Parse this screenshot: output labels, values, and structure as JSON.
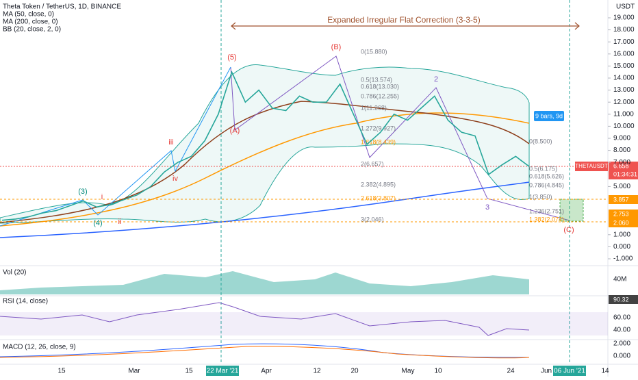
{
  "header": {
    "symbol": "Theta Token / TetherUS, 1D, BINANCE",
    "indicators": [
      "MA (50, close, 0)",
      "MA (200, close, 0)",
      "BB (20, close, 2, 0)"
    ]
  },
  "currency": "USDT",
  "annotation": "Expanded Irregular Flat Correction (3-3-5)",
  "bars_badge": "9 bars, 9d",
  "price_ticks": [
    {
      "value": 19,
      "label": "19.000"
    },
    {
      "value": 18,
      "label": "18.000"
    },
    {
      "value": 17,
      "label": "17.000"
    },
    {
      "value": 16,
      "label": "16.000"
    },
    {
      "value": 15,
      "label": "15.000"
    },
    {
      "value": 14,
      "label": "14.000"
    },
    {
      "value": 13,
      "label": "13.000"
    },
    {
      "value": 12,
      "label": "12.000"
    },
    {
      "value": 11,
      "label": "11.000"
    },
    {
      "value": 10,
      "label": "10.000"
    },
    {
      "value": 9,
      "label": "9.000"
    },
    {
      "value": 8,
      "label": "8.000"
    },
    {
      "value": 7,
      "label": "7.000"
    },
    {
      "value": 5,
      "label": "5.000"
    },
    {
      "value": 1,
      "label": "1.000"
    },
    {
      "value": 0,
      "label": "0.000"
    },
    {
      "value": -1,
      "label": "-1.000"
    }
  ],
  "price_series": [
    2.2,
    2.3,
    2.5,
    2.8,
    3.0,
    3.4,
    3.8,
    3.3,
    3.5,
    3.9,
    4.3,
    5.0,
    6.2,
    7.0,
    7.5,
    8.8,
    11.0,
    14.5,
    12.0,
    13.0,
    11.5,
    11.3,
    12.5,
    12.0,
    12.0,
    13.5,
    11.0,
    8.5,
    9.5,
    11.0,
    10.5,
    11.5,
    12.5,
    10.5,
    9.5,
    9.2,
    6.0,
    6.8,
    7.5,
    6.658
  ],
  "price_badges": {
    "symbol": "THETAUSDT",
    "last": "6.658",
    "countdown": "01:34:31",
    "level1": "3.857",
    "level2": "2.753",
    "level3": "2.060"
  },
  "fib_left": [
    "0(15.880)",
    "0.5(13.574)",
    "0.618(13.030)",
    "0.786(12.255)",
    "1(11.268)",
    "1.272(9.927)",
    "1.618(8.439)",
    "2(6.657)",
    "2.382(4.895)",
    "2.618(3.807)",
    "3(2.046)"
  ],
  "fib_right": [
    "0(8.500)",
    "0.5(6.175)",
    "0.618(5.626)",
    "0.786(4.845)",
    "1(3.850)",
    "1.236(2.751)",
    "1.382(2.074)"
  ],
  "waves": [
    "(5)",
    "(A)",
    "(B)",
    "2",
    "3",
    "(C)",
    "(3)",
    "(4)",
    "i",
    "ii",
    "iii",
    "iv"
  ],
  "volume": {
    "title": "Vol (20)",
    "tick": "40M"
  },
  "rsi": {
    "title": "RSI (14, close)",
    "badge": "90.32",
    "ticks": [
      "60.00",
      "40.00"
    ]
  },
  "macd": {
    "title": "MACD (12, 26, close, 9)",
    "ticks": [
      "2.000",
      "0.000"
    ]
  },
  "date_axis": [
    "15",
    "Mar",
    "15",
    "22 Mar '21",
    "Apr",
    "12",
    "20",
    "May",
    "10",
    "24",
    "Jun",
    "06 Jun '21",
    "14"
  ]
}
